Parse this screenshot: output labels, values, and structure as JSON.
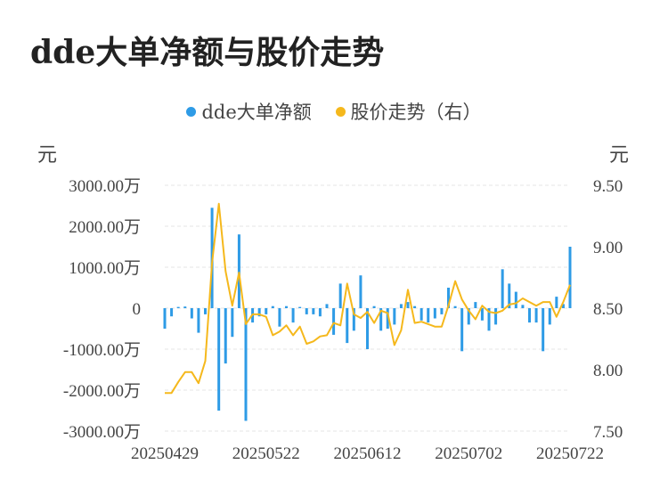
{
  "title": "dde大单净额与股价走势",
  "legend": {
    "bar_label": "dde大单净额",
    "line_label": "股价走势（右）"
  },
  "units": {
    "left": "元",
    "right": "元"
  },
  "colors": {
    "bar": "#2e9be6",
    "line": "#f5b81c",
    "grid": "#e6e6e6",
    "text": "#444444"
  },
  "chart_data": {
    "type": "bar+line",
    "title": "dde大单净额与股价走势",
    "x_tick_labels": [
      "20250429",
      "20250522",
      "20250612",
      "20250702",
      "20250722"
    ],
    "x_tick_indices": [
      0,
      15,
      30,
      45,
      60
    ],
    "left_axis": {
      "unit": "元",
      "ylim": [
        -3000,
        3000
      ],
      "tick_labels": [
        "3000.00万",
        "2000.00万",
        "1000.00万",
        "0",
        "-1000.00万",
        "-2000.00万",
        "-3000.00万"
      ],
      "tick_values": [
        3000,
        2000,
        1000,
        0,
        -1000,
        -2000,
        -3000
      ]
    },
    "right_axis": {
      "unit": "元",
      "ylim": [
        7.5,
        9.5
      ],
      "tick_labels": [
        "9.50",
        "9.00",
        "8.50",
        "8.00",
        "7.50"
      ],
      "tick_values": [
        9.5,
        9.0,
        8.5,
        8.0,
        7.5
      ]
    },
    "grid": true,
    "legend_position": "top",
    "series": [
      {
        "name": "dde大单净额",
        "type": "bar",
        "axis": "left",
        "unit": "万元",
        "values": [
          -500,
          -200,
          30,
          40,
          -250,
          -600,
          -150,
          2450,
          -2500,
          -1350,
          -700,
          1800,
          -2750,
          -350,
          -200,
          -150,
          50,
          -450,
          50,
          -350,
          30,
          -150,
          -150,
          -200,
          100,
          -650,
          600,
          -850,
          -550,
          800,
          -1000,
          50,
          -550,
          -500,
          -400,
          100,
          150,
          50,
          -300,
          -350,
          -250,
          -150,
          500,
          50,
          -1050,
          -400,
          150,
          -300,
          -550,
          -400,
          950,
          600,
          400,
          80,
          -350,
          -350,
          -1050,
          -400,
          280,
          100,
          1500
        ]
      },
      {
        "name": "股价走势（右）",
        "type": "line",
        "axis": "right",
        "values": [
          7.81,
          7.81,
          7.9,
          7.98,
          7.98,
          7.89,
          8.07,
          8.87,
          9.35,
          8.8,
          8.52,
          8.79,
          8.37,
          8.45,
          8.45,
          8.43,
          8.28,
          8.31,
          8.36,
          8.28,
          8.35,
          8.21,
          8.23,
          8.27,
          8.28,
          8.38,
          8.36,
          8.7,
          8.45,
          8.42,
          8.47,
          8.38,
          8.48,
          8.46,
          8.2,
          8.32,
          8.65,
          8.38,
          8.39,
          8.37,
          8.35,
          8.35,
          8.52,
          8.72,
          8.57,
          8.48,
          8.41,
          8.52,
          8.47,
          8.46,
          8.48,
          8.53,
          8.54,
          8.58,
          8.55,
          8.52,
          8.55,
          8.55,
          8.43,
          8.55,
          8.69
        ]
      }
    ]
  }
}
